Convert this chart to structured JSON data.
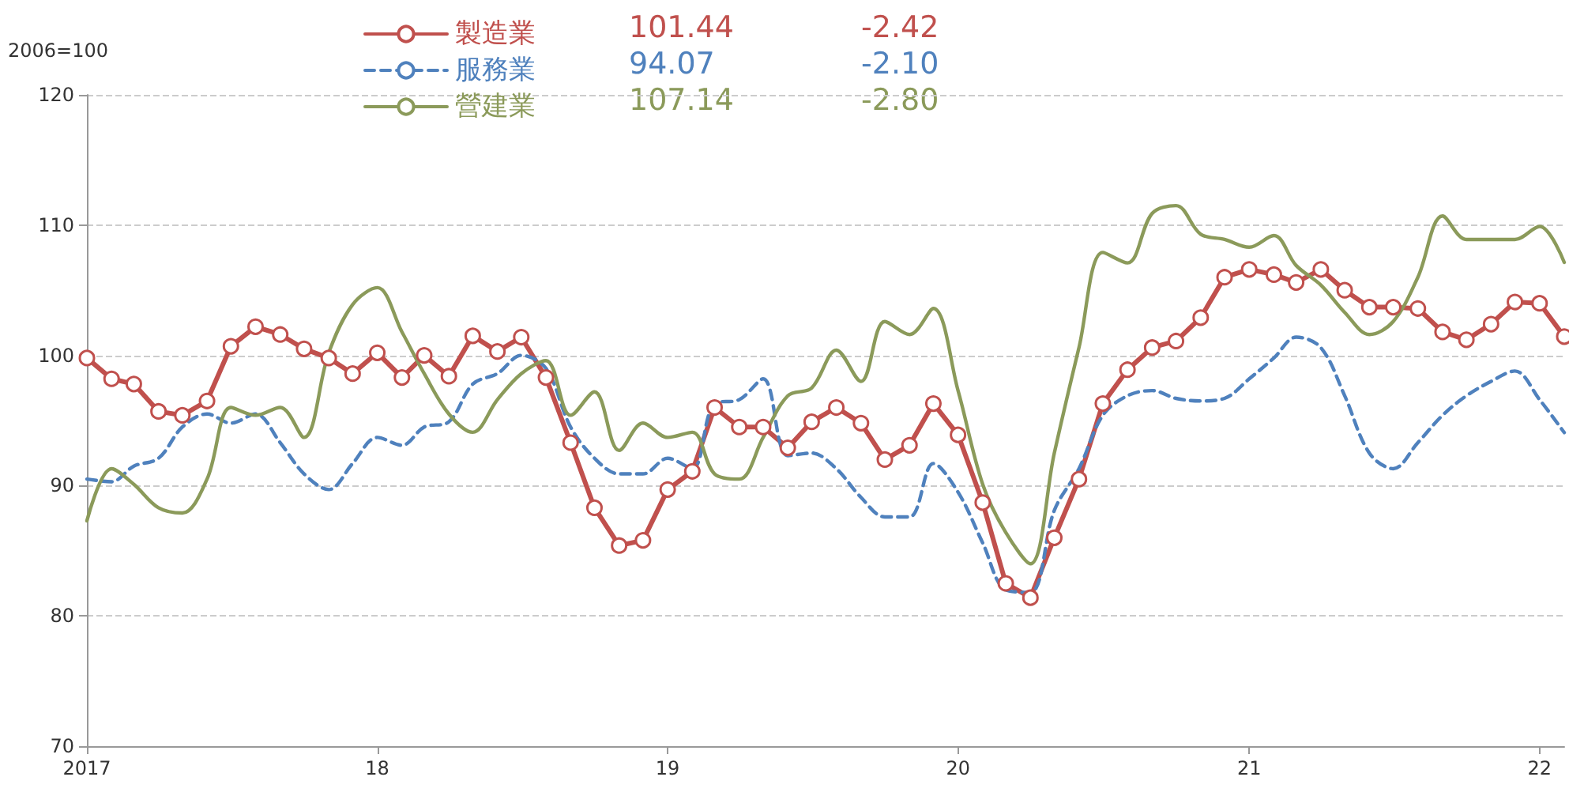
{
  "chart_data": {
    "type": "line",
    "ylabel": "2006=100",
    "x": [
      "2017-01",
      "2017-02",
      "2017-03",
      "2017-04",
      "2017-05",
      "2017-06",
      "2017-07",
      "2017-08",
      "2017-09",
      "2017-10",
      "2017-11",
      "2017-12",
      "2018-01",
      "2018-02",
      "2018-03",
      "2018-04",
      "2018-05",
      "2018-06",
      "2018-07",
      "2018-08",
      "2018-09",
      "2018-10",
      "2018-11",
      "2018-12",
      "2019-01",
      "2019-02",
      "2019-03",
      "2019-04",
      "2019-05",
      "2019-06",
      "2019-07",
      "2019-08",
      "2019-09",
      "2019-10",
      "2019-11",
      "2019-12",
      "2020-01",
      "2020-02",
      "2020-03",
      "2020-04",
      "2020-05",
      "2020-06",
      "2020-07",
      "2020-08",
      "2020-09",
      "2020-10",
      "2020-11",
      "2020-12",
      "2021-01",
      "2021-02",
      "2021-03",
      "2021-04",
      "2021-05",
      "2021-06",
      "2021-07",
      "2021-08",
      "2021-09",
      "2021-10",
      "2021-11",
      "2021-12",
      "2022-01",
      "2022-02"
    ],
    "series": [
      {
        "name": "製造業",
        "color": "#c0504d",
        "marker": "circle",
        "line_style": "solid",
        "values": [
          99.8,
          98.2,
          97.8,
          95.7,
          95.4,
          96.5,
          100.7,
          102.2,
          101.6,
          100.5,
          99.8,
          98.6,
          100.2,
          98.3,
          100.0,
          98.4,
          101.5,
          100.3,
          101.4,
          98.3,
          93.3,
          88.3,
          85.4,
          85.8,
          89.7,
          91.1,
          96.0,
          94.5,
          94.5,
          92.9,
          94.9,
          96.0,
          94.8,
          92.0,
          93.1,
          96.3,
          93.9,
          88.7,
          82.5,
          81.4,
          86.0,
          90.5,
          96.3,
          98.9,
          100.6,
          101.1,
          102.9,
          106.0,
          106.6,
          106.2,
          105.6,
          106.6,
          105.0,
          103.7,
          103.7,
          103.6,
          101.8,
          101.2,
          102.4,
          104.1,
          104.0,
          101.44
        ]
      },
      {
        "name": "服務業",
        "color": "#4f81bd",
        "marker": "none",
        "line_style": "dashed",
        "values": [
          90.5,
          90.3,
          91.5,
          92.1,
          94.5,
          95.5,
          94.8,
          95.5,
          93.3,
          90.9,
          89.7,
          91.7,
          93.7,
          93.1,
          94.5,
          94.9,
          97.8,
          98.6,
          100.0,
          99.0,
          94.5,
          92.1,
          90.9,
          90.9,
          92.1,
          91.3,
          96.3,
          96.6,
          98.2,
          92.3,
          92.5,
          91.3,
          89.1,
          87.6,
          87.6,
          91.7,
          89.5,
          85.6,
          82.0,
          81.8,
          88.1,
          91.3,
          95.4,
          96.9,
          97.3,
          96.7,
          96.5,
          96.7,
          98.2,
          99.8,
          101.4,
          100.6,
          96.9,
          92.5,
          91.3,
          93.3,
          95.4,
          96.9,
          98.0,
          98.8,
          96.6,
          94.07
        ]
      },
      {
        "name": "營建業",
        "color": "#8b9a5a",
        "marker": "none",
        "line_style": "solid",
        "values": [
          87.3,
          91.3,
          90.1,
          88.3,
          87.9,
          90.5,
          96.0,
          95.4,
          96.0,
          93.7,
          100.2,
          103.9,
          105.2,
          101.8,
          98.6,
          95.5,
          94.1,
          96.6,
          98.6,
          99.6,
          95.4,
          97.2,
          92.7,
          94.8,
          93.7,
          94.1,
          90.9,
          90.5,
          93.7,
          96.9,
          97.5,
          100.4,
          98.0,
          102.6,
          101.6,
          103.6,
          97.3,
          90.1,
          86.4,
          84.0,
          92.5,
          100.6,
          107.9,
          107.1,
          110.9,
          111.5,
          109.3,
          108.9,
          108.3,
          109.2,
          106.9,
          105.4,
          103.3,
          101.6,
          102.6,
          106.0,
          110.7,
          108.9,
          108.9,
          108.9,
          109.9,
          107.14
        ]
      }
    ],
    "annotations": [
      "101.44",
      "-2.42",
      "94.07",
      "-2.10",
      "107.14",
      "-2.80"
    ],
    "xlim": [
      "2017-01",
      "2022-02"
    ],
    "xticks": [
      {
        "value": "2017-01",
        "label": "2017"
      },
      {
        "value": "2018-01",
        "label": "18"
      },
      {
        "value": "2019-01",
        "label": "19"
      },
      {
        "value": "2020-01",
        "label": "20"
      },
      {
        "value": "2021-01",
        "label": "21"
      },
      {
        "value": "2022-01",
        "label": "22"
      }
    ],
    "ylim": [
      70,
      120
    ],
    "yticks": [
      70,
      80,
      90,
      100,
      110,
      120
    ],
    "grid": "y",
    "legend": "top"
  }
}
